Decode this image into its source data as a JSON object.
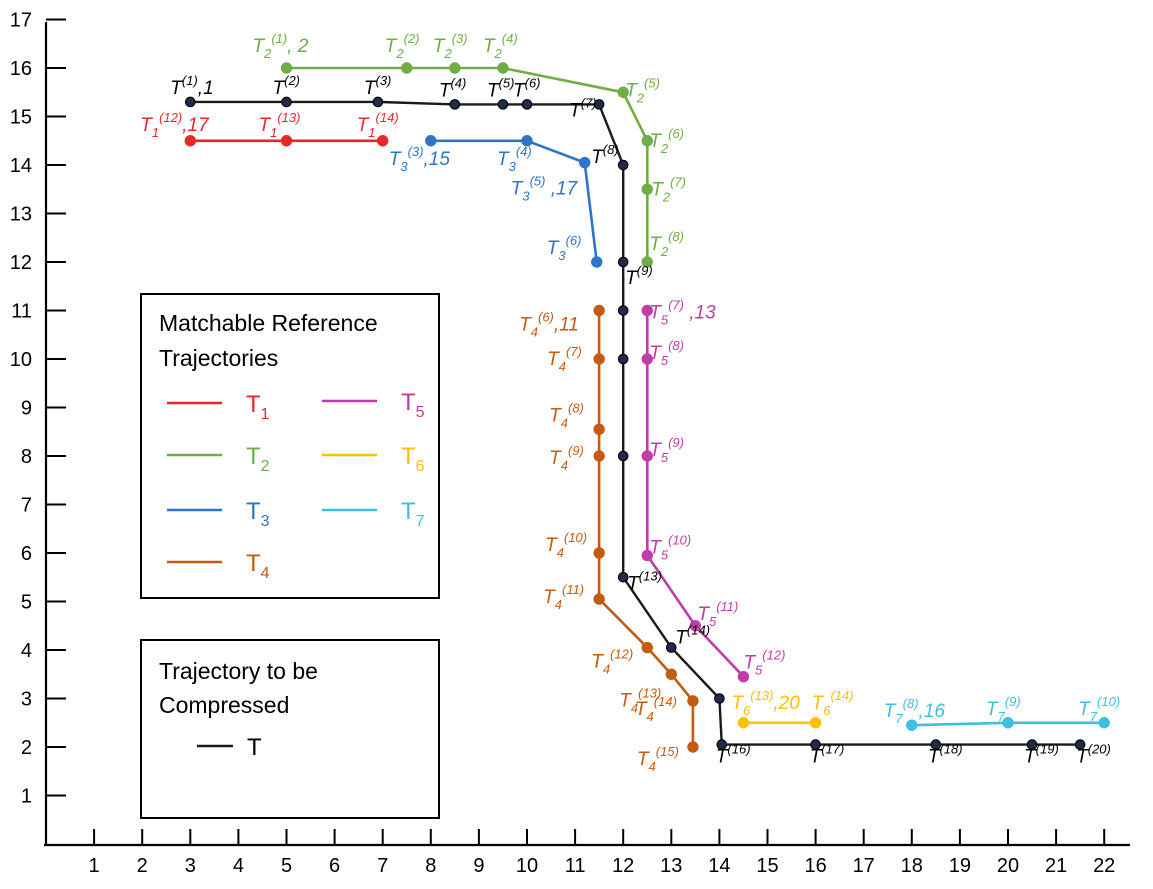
{
  "figure": {
    "x_ticks": [
      1,
      2,
      3,
      4,
      5,
      6,
      7,
      8,
      9,
      10,
      11,
      12,
      13,
      14,
      15,
      16,
      17,
      18,
      19,
      20,
      21,
      22
    ],
    "y_ticks": [
      1,
      2,
      3,
      4,
      5,
      6,
      7,
      8,
      9,
      10,
      11,
      12,
      13,
      14,
      15,
      16,
      17
    ],
    "legend_matchable": {
      "title_line1": "Matchable Reference",
      "title_line2": "Trajectories",
      "items": [
        {
          "id": "T1",
          "base": "T",
          "sub": "1"
        },
        {
          "id": "T2",
          "base": "T",
          "sub": "2"
        },
        {
          "id": "T3",
          "base": "T",
          "sub": "3"
        },
        {
          "id": "T4",
          "base": "T",
          "sub": "4"
        },
        {
          "id": "T5",
          "base": "T",
          "sub": "5"
        },
        {
          "id": "T6",
          "base": "T",
          "sub": "6"
        },
        {
          "id": "T7",
          "base": "T",
          "sub": "7"
        }
      ]
    },
    "legend_compressed": {
      "title_line1": "Trajectory to be",
      "title_line2": "Compressed",
      "item": {
        "id": "T",
        "base": "T"
      }
    },
    "colors": {
      "T": "#1a1a1a",
      "T1": "#e8262b",
      "T2": "#70ad47",
      "T3": "#2e75c7",
      "T4": "#c55a11",
      "T5": "#c03ca8",
      "T6": "#ffc000",
      "T7": "#3cc0de",
      "marker_fill_T": "#1f2b48"
    },
    "trajectories": [
      {
        "id": "T",
        "points": [
          {
            "x": 3,
            "y": 15.3,
            "sup": "(1)",
            "suffix": ",1"
          },
          {
            "x": 5,
            "y": 15.3,
            "sup": "(2)"
          },
          {
            "x": 6.9,
            "y": 15.3,
            "sup": "(3)"
          },
          {
            "x": 8.5,
            "y": 15.25,
            "sup": "(4)"
          },
          {
            "x": 9.5,
            "y": 15.25,
            "sup": "(5)"
          },
          {
            "x": 10,
            "y": 15.25,
            "sup": "(6)"
          },
          {
            "x": 11.5,
            "y": 15.25,
            "sup": "(7)"
          },
          {
            "x": 12,
            "y": 14,
            "sup": "(8)"
          },
          {
            "x": 12,
            "y": 12,
            "sup": "(9)"
          },
          {
            "x": 12,
            "y": 11
          },
          {
            "x": 12,
            "y": 10
          },
          {
            "x": 12,
            "y": 8
          },
          {
            "x": 12,
            "y": 5.5,
            "sup": "(13)"
          },
          {
            "x": 13,
            "y": 4.05,
            "sup": "(14)"
          },
          {
            "x": 14,
            "y": 3
          },
          {
            "x": 14.05,
            "y": 2.05,
            "sup": "(16)"
          },
          {
            "x": 16,
            "y": 2.05,
            "sup": "(17)"
          },
          {
            "x": 18.5,
            "y": 2.05,
            "sup": "(18)"
          },
          {
            "x": 20.5,
            "y": 2.05,
            "sup": "(19)"
          },
          {
            "x": 21.5,
            "y": 2.05,
            "sup": "(20)"
          }
        ]
      },
      {
        "id": "T1",
        "points": [
          {
            "x": 3,
            "y": 14.5,
            "sub": "1",
            "sup": "(12)",
            "suffix": ",17"
          },
          {
            "x": 5,
            "y": 14.5,
            "sub": "1",
            "sup": "(13)"
          },
          {
            "x": 7,
            "y": 14.5,
            "sub": "1",
            "sup": "(14)"
          }
        ]
      },
      {
        "id": "T2",
        "points": [
          {
            "x": 5,
            "y": 16,
            "sub": "2",
            "sup": "(1)",
            "suffix": ", 2"
          },
          {
            "x": 7.5,
            "y": 16,
            "sub": "2",
            "sup": "(2)"
          },
          {
            "x": 8.5,
            "y": 16,
            "sub": "2",
            "sup": "(3)"
          },
          {
            "x": 9.5,
            "y": 16,
            "sub": "2",
            "sup": "(4)"
          },
          {
            "x": 12,
            "y": 15.5,
            "sub": "2",
            "sup": "(5)"
          },
          {
            "x": 12.5,
            "y": 14.5,
            "sub": "2",
            "sup": "(6)"
          },
          {
            "x": 12.5,
            "y": 13.5,
            "sub": "2",
            "sup": "(7)"
          },
          {
            "x": 12.5,
            "y": 12,
            "sub": "2",
            "sup": "(8)"
          }
        ]
      },
      {
        "id": "T3",
        "points": [
          {
            "x": 8,
            "y": 14.5,
            "sub": "3",
            "sup": "(3)",
            "suffix": ",15"
          },
          {
            "x": 10,
            "y": 14.5,
            "sub": "3",
            "sup": "(4)"
          },
          {
            "x": 11.2,
            "y": 14.05,
            "sub": "3",
            "sup": "(5)",
            "suffix": " ,17"
          },
          {
            "x": 11.45,
            "y": 12,
            "sub": "3",
            "sup": "(6)"
          }
        ]
      },
      {
        "id": "T4",
        "points": [
          {
            "x": 11.5,
            "y": 11,
            "sub": "4",
            "sup": "(6)",
            "suffix": ",11"
          },
          {
            "x": 11.5,
            "y": 10,
            "sub": "4",
            "sup": "(7)"
          },
          {
            "x": 11.5,
            "y": 8.55,
            "sub": "4",
            "sup": "(8)"
          },
          {
            "x": 11.5,
            "y": 8,
            "sub": "4",
            "sup": "(9)"
          },
          {
            "x": 11.5,
            "y": 6,
            "sub": "4",
            "sup": "(10)"
          },
          {
            "x": 11.5,
            "y": 5.05,
            "sub": "4",
            "sup": "(11)"
          },
          {
            "x": 12.5,
            "y": 4.05,
            "sub": "4",
            "sup": "(12)"
          },
          {
            "x": 13,
            "y": 3.5,
            "sub": "4",
            "sup": "(13)"
          },
          {
            "x": 13.45,
            "y": 2.95,
            "sub": "4",
            "sup": "(14)"
          },
          {
            "x": 13.45,
            "y": 2,
            "sub": "4",
            "sup": "(15)"
          }
        ]
      },
      {
        "id": "T5",
        "points": [
          {
            "x": 12.5,
            "y": 11,
            "sub": "5",
            "sup": "(7)",
            "suffix": " ,13"
          },
          {
            "x": 12.5,
            "y": 10,
            "sub": "5",
            "sup": "(8)"
          },
          {
            "x": 12.5,
            "y": 8,
            "sub": "5",
            "sup": "(9)"
          },
          {
            "x": 12.5,
            "y": 5.95,
            "sub": "5",
            "sup": "(10)"
          },
          {
            "x": 13.5,
            "y": 4.5,
            "sub": "5",
            "sup": "(11)"
          },
          {
            "x": 14.5,
            "y": 3.45,
            "sub": "5",
            "sup": "(12)"
          }
        ]
      },
      {
        "id": "T6",
        "points": [
          {
            "x": 14.5,
            "y": 2.5,
            "sub": "6",
            "sup": "(13)",
            "suffix": ",20"
          },
          {
            "x": 16,
            "y": 2.5,
            "sub": "6",
            "sup": "(14)"
          }
        ]
      },
      {
        "id": "T7",
        "points": [
          {
            "x": 18,
            "y": 2.45,
            "sub": "7",
            "sup": "(8)",
            "suffix": ",16"
          },
          {
            "x": 20,
            "y": 2.5,
            "sub": "7",
            "sup": "(9)"
          },
          {
            "x": 22,
            "y": 2.5,
            "sub": "7",
            "sup": "(10)"
          }
        ]
      }
    ]
  }
}
